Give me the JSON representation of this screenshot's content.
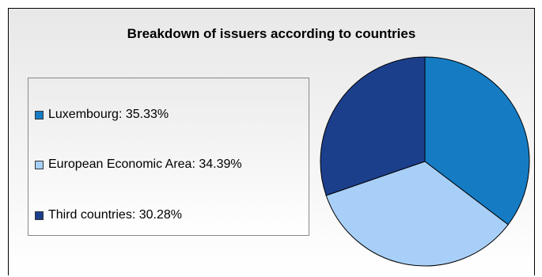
{
  "chart_data": {
    "type": "pie",
    "title": "Breakdown of issuers according to countries",
    "slices": [
      {
        "label": "Luxembourg: 35.33%",
        "name": "Luxembourg",
        "value": 35.33,
        "color": "#157cc4"
      },
      {
        "label": "European Economic Area: 34.39%",
        "name": "European Economic Area",
        "value": 34.39,
        "color": "#a8cff7"
      },
      {
        "label": "Third countries: 30.28%",
        "name": "Third countries",
        "value": 30.28,
        "color": "#1c3f8c"
      }
    ],
    "legend_placement": "left",
    "start_angle_deg": 0,
    "direction": "clockwise"
  }
}
